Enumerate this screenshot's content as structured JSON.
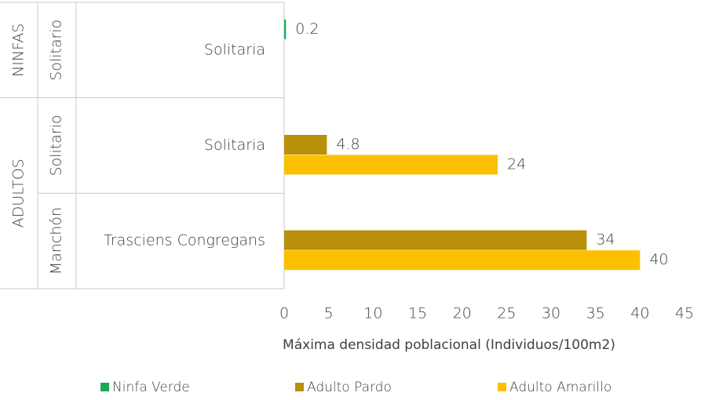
{
  "chart_data": {
    "type": "bar",
    "orientation": "horizontal",
    "groups": [
      "NINFAS",
      "ADULTOS",
      null
    ],
    "subgroups": [
      "Solitario",
      "Solitario",
      "Manchón"
    ],
    "categories": [
      "Solitaria",
      "Solitaria",
      "Trasciens Congregans"
    ],
    "series": [
      {
        "name": "Ninfa Verde",
        "color": "#1aa85a",
        "values": [
          0.2,
          null,
          null
        ]
      },
      {
        "name": "Adulto Pardo",
        "color": "#b8900a",
        "values": [
          null,
          4.8,
          34
        ]
      },
      {
        "name": "Adulto Amarillo",
        "color": "#fcc000",
        "values": [
          null,
          24,
          40
        ]
      }
    ],
    "xlabel": "Máxima densidad poblacional (Individuos/100m2)",
    "xlim": [
      0,
      45
    ],
    "xticks": [
      0,
      5,
      10,
      15,
      20,
      25,
      30,
      35,
      40,
      45
    ],
    "grid": false,
    "legend": "bottom"
  }
}
